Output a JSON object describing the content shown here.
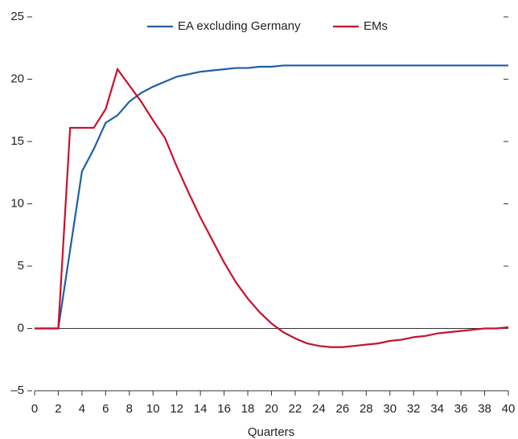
{
  "chart_data": {
    "type": "line",
    "x": [
      0,
      1,
      2,
      3,
      4,
      5,
      6,
      7,
      8,
      9,
      10,
      11,
      12,
      13,
      14,
      15,
      16,
      17,
      18,
      19,
      20,
      21,
      22,
      23,
      24,
      25,
      26,
      27,
      28,
      29,
      30,
      31,
      32,
      33,
      34,
      35,
      36,
      37,
      38,
      39,
      40
    ],
    "series": [
      {
        "name": "EA excluding Germany",
        "color": "#1f5fa6",
        "values": [
          0,
          0,
          0,
          6.3,
          12.6,
          14.4,
          16.5,
          17.1,
          18.2,
          18.9,
          19.4,
          19.8,
          20.2,
          20.4,
          20.6,
          20.7,
          20.8,
          20.9,
          20.9,
          21,
          21,
          21.1,
          21.1,
          21.1,
          21.1,
          21.1,
          21.1,
          21.1,
          21.1,
          21.1,
          21.1,
          21.1,
          21.1,
          21.1,
          21.1,
          21.1,
          21.1,
          21.1,
          21.1,
          21.1,
          21.1
        ]
      },
      {
        "name": "EMs",
        "color": "#c8102e",
        "values": [
          0,
          0,
          0,
          16.1,
          16.1,
          16.1,
          17.6,
          20.8,
          19.5,
          18.2,
          16.7,
          15.3,
          13,
          10.9,
          8.9,
          7.1,
          5.3,
          3.7,
          2.4,
          1.3,
          0.4,
          -0.3,
          -0.8,
          -1.2,
          -1.4,
          -1.5,
          -1.5,
          -1.4,
          -1.3,
          -1.2,
          -1,
          -0.9,
          -0.7,
          -0.6,
          -0.4,
          -0.3,
          -0.2,
          -0.1,
          0,
          0,
          0.1
        ]
      }
    ],
    "xlabel": "Quarters",
    "xlim": [
      0,
      40
    ],
    "xticks": [
      0,
      2,
      4,
      6,
      8,
      10,
      12,
      14,
      16,
      18,
      20,
      22,
      24,
      26,
      28,
      30,
      32,
      34,
      36,
      38,
      40
    ],
    "ylim": [
      -5,
      25
    ],
    "yticks": [
      {
        "value": -5,
        "label": "–5"
      },
      0,
      5,
      10,
      15,
      20,
      25
    ],
    "legend": "top"
  }
}
